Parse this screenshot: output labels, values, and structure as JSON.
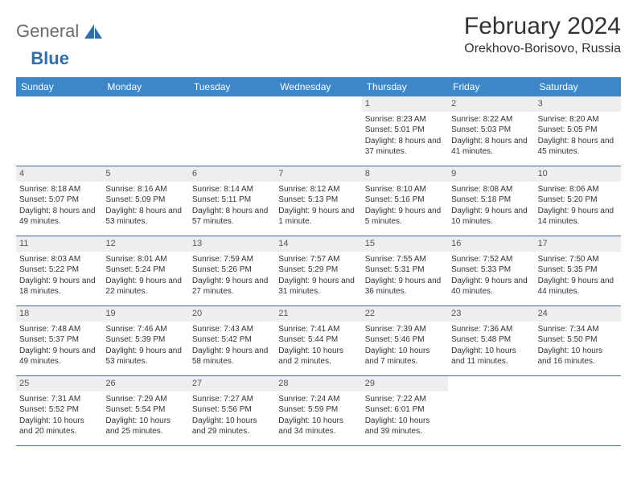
{
  "logo": {
    "text_gray": "General",
    "text_blue": "Blue"
  },
  "title": "February 2024",
  "location": "Orekhovo-Borisovo, Russia",
  "colors": {
    "header_bg": "#3b87c8",
    "header_text": "#ffffff",
    "daynum_bg": "#eceef0",
    "row_border": "#3b6a9a",
    "body_text": "#333333",
    "logo_gray": "#6a6a6a",
    "logo_blue": "#2f6fb0"
  },
  "weekdays": [
    "Sunday",
    "Monday",
    "Tuesday",
    "Wednesday",
    "Thursday",
    "Friday",
    "Saturday"
  ],
  "first_weekday_index": 4,
  "days": [
    {
      "n": 1,
      "sunrise": "8:23 AM",
      "sunset": "5:01 PM",
      "daylight": "8 hours and 37 minutes."
    },
    {
      "n": 2,
      "sunrise": "8:22 AM",
      "sunset": "5:03 PM",
      "daylight": "8 hours and 41 minutes."
    },
    {
      "n": 3,
      "sunrise": "8:20 AM",
      "sunset": "5:05 PM",
      "daylight": "8 hours and 45 minutes."
    },
    {
      "n": 4,
      "sunrise": "8:18 AM",
      "sunset": "5:07 PM",
      "daylight": "8 hours and 49 minutes."
    },
    {
      "n": 5,
      "sunrise": "8:16 AM",
      "sunset": "5:09 PM",
      "daylight": "8 hours and 53 minutes."
    },
    {
      "n": 6,
      "sunrise": "8:14 AM",
      "sunset": "5:11 PM",
      "daylight": "8 hours and 57 minutes."
    },
    {
      "n": 7,
      "sunrise": "8:12 AM",
      "sunset": "5:13 PM",
      "daylight": "9 hours and 1 minute."
    },
    {
      "n": 8,
      "sunrise": "8:10 AM",
      "sunset": "5:16 PM",
      "daylight": "9 hours and 5 minutes."
    },
    {
      "n": 9,
      "sunrise": "8:08 AM",
      "sunset": "5:18 PM",
      "daylight": "9 hours and 10 minutes."
    },
    {
      "n": 10,
      "sunrise": "8:06 AM",
      "sunset": "5:20 PM",
      "daylight": "9 hours and 14 minutes."
    },
    {
      "n": 11,
      "sunrise": "8:03 AM",
      "sunset": "5:22 PM",
      "daylight": "9 hours and 18 minutes."
    },
    {
      "n": 12,
      "sunrise": "8:01 AM",
      "sunset": "5:24 PM",
      "daylight": "9 hours and 22 minutes."
    },
    {
      "n": 13,
      "sunrise": "7:59 AM",
      "sunset": "5:26 PM",
      "daylight": "9 hours and 27 minutes."
    },
    {
      "n": 14,
      "sunrise": "7:57 AM",
      "sunset": "5:29 PM",
      "daylight": "9 hours and 31 minutes."
    },
    {
      "n": 15,
      "sunrise": "7:55 AM",
      "sunset": "5:31 PM",
      "daylight": "9 hours and 36 minutes."
    },
    {
      "n": 16,
      "sunrise": "7:52 AM",
      "sunset": "5:33 PM",
      "daylight": "9 hours and 40 minutes."
    },
    {
      "n": 17,
      "sunrise": "7:50 AM",
      "sunset": "5:35 PM",
      "daylight": "9 hours and 44 minutes."
    },
    {
      "n": 18,
      "sunrise": "7:48 AM",
      "sunset": "5:37 PM",
      "daylight": "9 hours and 49 minutes."
    },
    {
      "n": 19,
      "sunrise": "7:46 AM",
      "sunset": "5:39 PM",
      "daylight": "9 hours and 53 minutes."
    },
    {
      "n": 20,
      "sunrise": "7:43 AM",
      "sunset": "5:42 PM",
      "daylight": "9 hours and 58 minutes."
    },
    {
      "n": 21,
      "sunrise": "7:41 AM",
      "sunset": "5:44 PM",
      "daylight": "10 hours and 2 minutes."
    },
    {
      "n": 22,
      "sunrise": "7:39 AM",
      "sunset": "5:46 PM",
      "daylight": "10 hours and 7 minutes."
    },
    {
      "n": 23,
      "sunrise": "7:36 AM",
      "sunset": "5:48 PM",
      "daylight": "10 hours and 11 minutes."
    },
    {
      "n": 24,
      "sunrise": "7:34 AM",
      "sunset": "5:50 PM",
      "daylight": "10 hours and 16 minutes."
    },
    {
      "n": 25,
      "sunrise": "7:31 AM",
      "sunset": "5:52 PM",
      "daylight": "10 hours and 20 minutes."
    },
    {
      "n": 26,
      "sunrise": "7:29 AM",
      "sunset": "5:54 PM",
      "daylight": "10 hours and 25 minutes."
    },
    {
      "n": 27,
      "sunrise": "7:27 AM",
      "sunset": "5:56 PM",
      "daylight": "10 hours and 29 minutes."
    },
    {
      "n": 28,
      "sunrise": "7:24 AM",
      "sunset": "5:59 PM",
      "daylight": "10 hours and 34 minutes."
    },
    {
      "n": 29,
      "sunrise": "7:22 AM",
      "sunset": "6:01 PM",
      "daylight": "10 hours and 39 minutes."
    }
  ],
  "labels": {
    "sunrise_prefix": "Sunrise: ",
    "sunset_prefix": "Sunset: ",
    "daylight_prefix": "Daylight: "
  }
}
